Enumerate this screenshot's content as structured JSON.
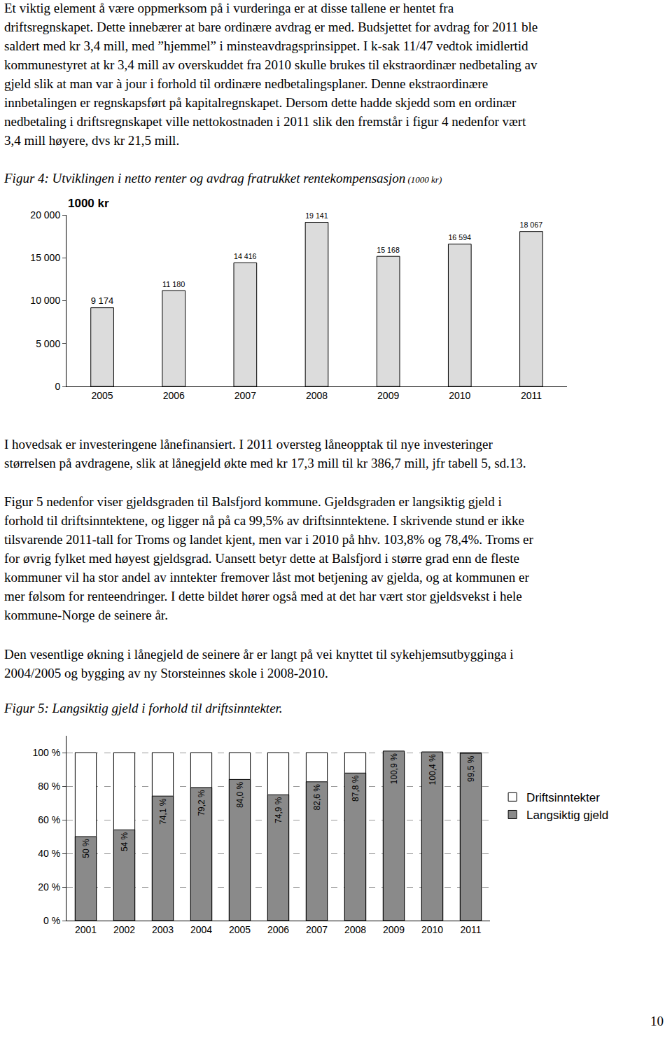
{
  "document": {
    "paragraphs": [
      [
        "Et viktig element å være oppmerksom på i vurderinga er at disse tallene er hentet fra",
        "driftsregnskapet. Dette innebærer at bare ordinære avdrag er med. Budsjettet for avdrag for 2011 ble",
        "saldert med kr 3,4 mill, med ”hjemmel” i minsteavdragsprinsippet. I k-sak 11/47 vedtok imidlertid",
        "kommunestyret at kr 3,4 mill av overskuddet fra 2010 skulle brukes til ekstraordinær nedbetaling av",
        "gjeld slik at man var à jour i forhold til ordinære nedbetalingsplaner. Denne ekstraordinære",
        "innbetalingen er regnskapsført på kapitalregnskapet. Dersom dette hadde skjedd som en ordinær",
        "nedbetaling i driftsregnskapet ville nettokostnaden i 2011 slik den fremstår i figur 4 nedenfor vært",
        "3,4 mill høyere, dvs kr 21,5 mill."
      ],
      [
        "I hovedsak er investeringene lånefinansiert. I 2011 oversteg låneopptak til nye investeringer",
        "størrelsen på avdragene, slik at lånegjeld økte med kr 17,3 mill til kr 386,7 mill, jfr tabell 5, sd.13."
      ],
      [
        "Figur 5 nedenfor viser gjeldsgraden til Balsfjord kommune. Gjeldsgraden er langsiktig gjeld i",
        "forhold til driftsinntektene, og ligger nå på ca 99,5% av driftsinntektene. I skrivende stund er ikke",
        "tilsvarende 2011-tall for Troms og landet kjent, men var i 2010 på hhv. 103,8% og 78,4%. Troms er",
        "for øvrig fylket med høyest gjeldsgrad. Uansett betyr dette at Balsfjord i større grad enn de fleste",
        "kommuner vil ha stor andel av inntekter fremover låst mot betjening av gjelda, og at kommunen er",
        "mer følsom for renteendringer. I dette bildet hører også med at det har vært stor gjeldsvekst i hele",
        "kommune-Norge de seinere år."
      ],
      [
        "Den vesentlige økning i lånegjeld de seinere år er langt på vei knyttet til sykehjemsutbygginga i",
        "2004/2005 og bygging av ny Storsteinnes skole i 2008-2010."
      ]
    ],
    "page_number": "10"
  },
  "chart_data": [
    {
      "type": "bar",
      "title": "Figur 4: Utviklingen i netto renter og avdrag fratrukket rentekompensasjon",
      "subtitle": "(1000 kr)",
      "ylabel": "1000 kr",
      "categories": [
        "2005",
        "2006",
        "2007",
        "2008",
        "2009",
        "2010",
        "2011"
      ],
      "values": [
        9174,
        11180,
        14416,
        19141,
        15168,
        16594,
        18067
      ],
      "value_labels": [
        "9 174",
        "11 180",
        "14 416",
        "19 141",
        "15 168",
        "16 594",
        "18 067"
      ],
      "data_labels": true,
      "color": "#dcdcdc",
      "ylim": [
        0,
        20000
      ],
      "yticks": [
        0,
        {
          "value": 5000,
          "label": "5 000"
        },
        {
          "value": 10000,
          "label": "10 000"
        },
        {
          "value": 15000,
          "label": "15 000"
        },
        {
          "value": 20000,
          "label": "20 000"
        }
      ],
      "grid": false
    },
    {
      "type": "bar",
      "title": "Figur 5: Langsiktig gjeld i forhold til driftsinntekter.",
      "categories": [
        "2001",
        "2002",
        "2003",
        "2004",
        "2005",
        "2006",
        "2007",
        "2008",
        "2009",
        "2010",
        "2011"
      ],
      "series": [
        {
          "name": "Driftsinntekter",
          "color": "#ffffff",
          "values": [
            100,
            100,
            100,
            100,
            100,
            100,
            100,
            100,
            100,
            100,
            100
          ]
        },
        {
          "name": "Langsiktig gjeld",
          "color": "#8a8a8a",
          "data_labels": true,
          "values": [
            50,
            54,
            74.1,
            79.2,
            84.0,
            74.9,
            82.6,
            87.8,
            100.9,
            100.4,
            99.5
          ],
          "value_labels": [
            "50 %",
            "54 %",
            "74,1 %",
            "79,2 %",
            "84,0 %",
            "74,9 %",
            "82,6 %",
            "87,8 %",
            "100,9 %",
            "100,4 %",
            "99,5 %"
          ]
        }
      ],
      "ylim": [
        0,
        110
      ],
      "yticks": [
        {
          "value": 0,
          "label": "0 %"
        },
        {
          "value": 20,
          "label": "20 %"
        },
        {
          "value": 40,
          "label": "40 %"
        },
        {
          "value": 60,
          "label": "60 %"
        },
        {
          "value": 80,
          "label": "80 %"
        },
        {
          "value": 100,
          "label": "100 %"
        }
      ],
      "grid": true,
      "legend": "right"
    }
  ]
}
